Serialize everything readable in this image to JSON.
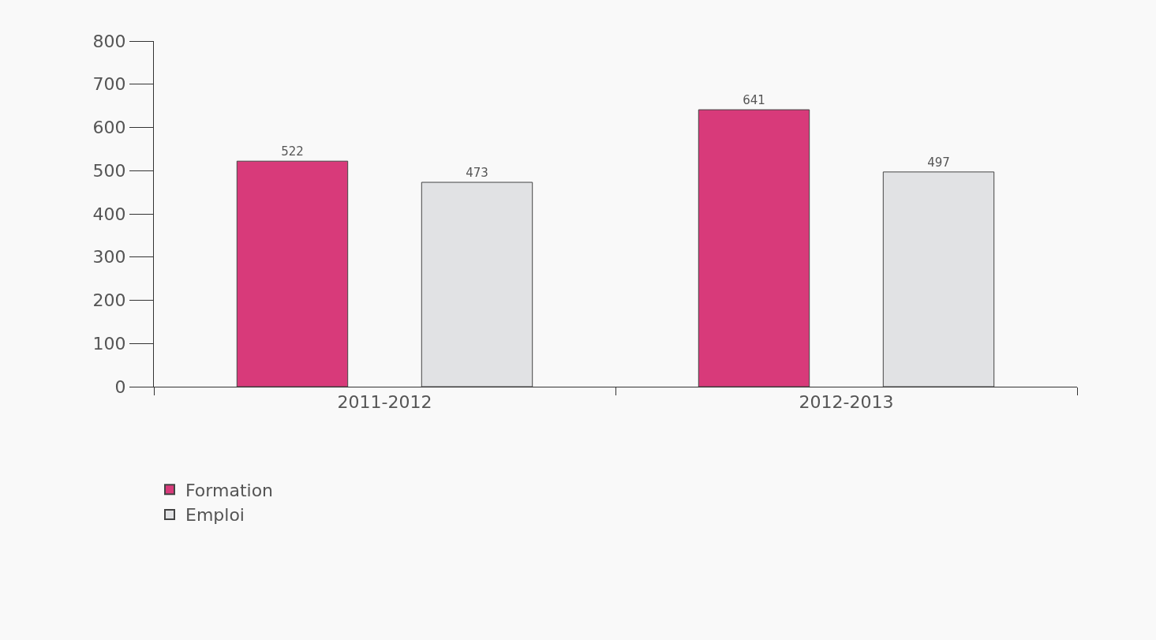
{
  "chart_data": {
    "type": "bar",
    "categories": [
      "2011-2012",
      "2012-2013"
    ],
    "series": [
      {
        "name": "Formation",
        "color": "#d83a7a",
        "values": [
          522,
          641
        ]
      },
      {
        "name": "Emploi",
        "color": "#e1e2e4",
        "values": [
          473,
          497
        ]
      }
    ],
    "ylim": [
      0,
      800
    ],
    "yticks": [
      0,
      100,
      200,
      300,
      400,
      500,
      600,
      700,
      800
    ],
    "grid": false,
    "legend": "bottom left",
    "data_labels": true
  }
}
